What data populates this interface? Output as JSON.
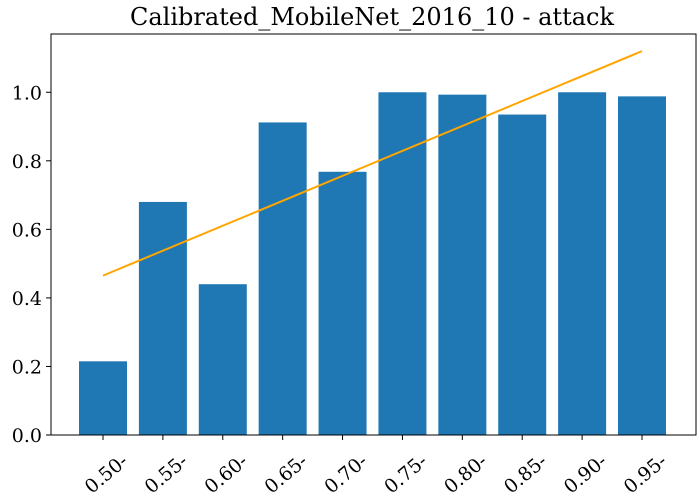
{
  "chart_data": {
    "type": "bar",
    "title": "Calibrated_MobileNet_2016_10 - attack",
    "xlabel": "",
    "ylabel": "",
    "categories": [
      "0.50-",
      "0.55-",
      "0.60-",
      "0.65-",
      "0.70-",
      "0.75-",
      "0.80-",
      "0.85-",
      "0.90-",
      "0.95-"
    ],
    "values": [
      0.215,
      0.68,
      0.44,
      0.912,
      0.768,
      1.0,
      0.993,
      0.935,
      1.0,
      0.988
    ],
    "ylim": [
      0,
      1.17
    ],
    "yticks": [
      "0.0",
      "0.2",
      "0.4",
      "0.6",
      "0.8",
      "1.0"
    ],
    "bar_color": "#1f77b4",
    "reference_line": {
      "type": "line",
      "color": "#ffa500",
      "x": [
        "0.50-",
        "0.95-"
      ],
      "y": [
        0.465,
        1.12
      ]
    },
    "grid": false,
    "legend": "none"
  }
}
